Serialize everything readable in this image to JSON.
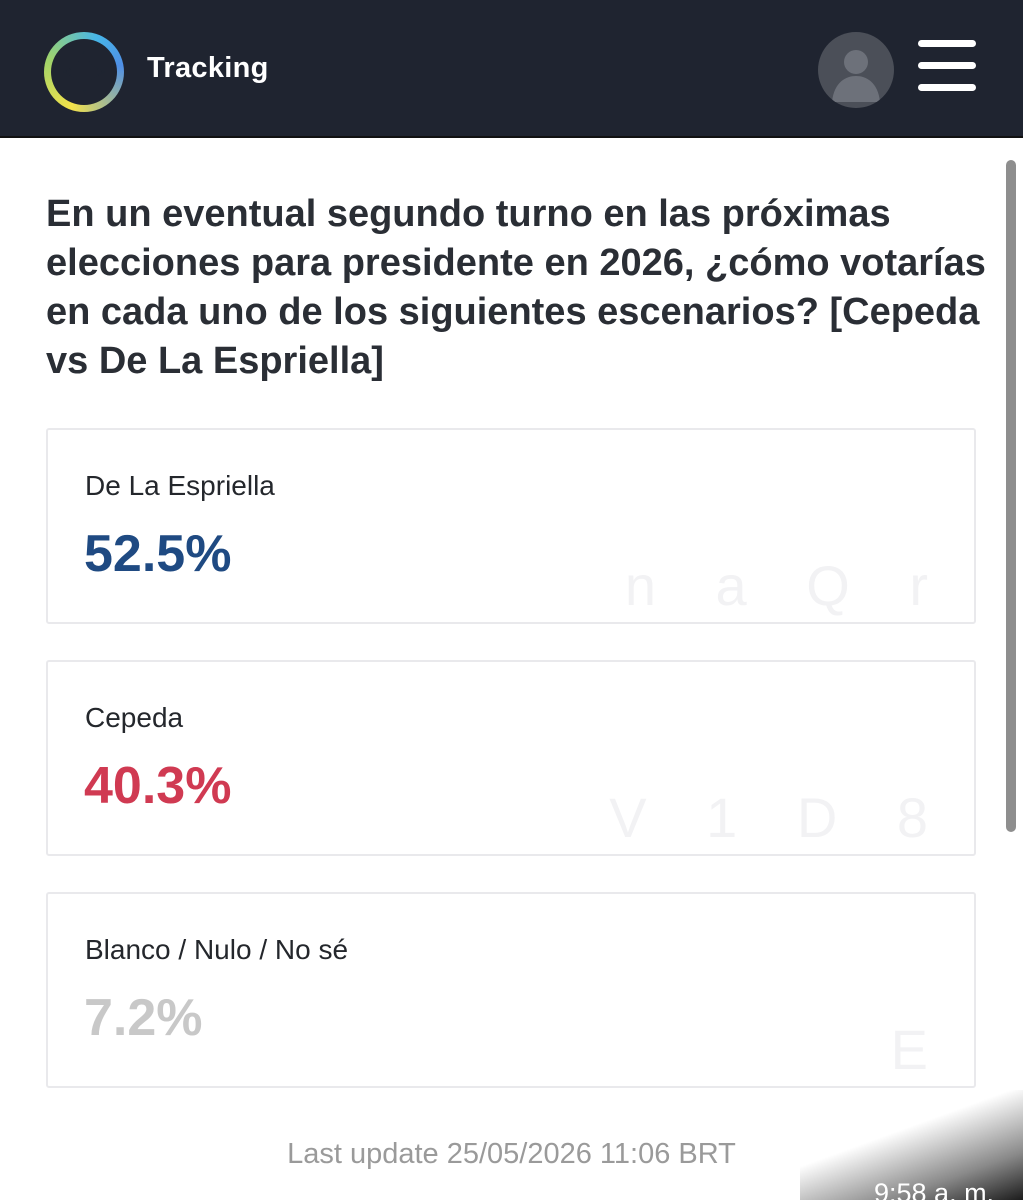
{
  "header": {
    "title": "Tracking",
    "logo_icon": "compass-logo-icon",
    "avatar_icon": "user-avatar-icon",
    "menu_icon": "hamburger-menu-icon",
    "background_color": "#1f2430"
  },
  "question": {
    "text": "En un eventual segundo turno en las próximas elecciones para presidente en 2026, ¿cómo votarías en cada uno de los siguientes escenarios? [Cepeda vs De La Espriella]"
  },
  "results": [
    {
      "label": "De La Espriella",
      "value": "52.5%",
      "color": "#1f4a82",
      "watermark": "n a Q r"
    },
    {
      "label": "Cepeda",
      "value": "40.3%",
      "color": "#d03a52",
      "watermark": "V 1 D 8"
    },
    {
      "label": "Blanco / Nulo / No sé",
      "value": "7.2%",
      "color": "#c8c8c8",
      "watermark": "E"
    }
  ],
  "footer": {
    "last_update": "Last update 25/05/2026 11:06 BRT"
  },
  "status_bar": {
    "time": "9:58 a. m."
  }
}
